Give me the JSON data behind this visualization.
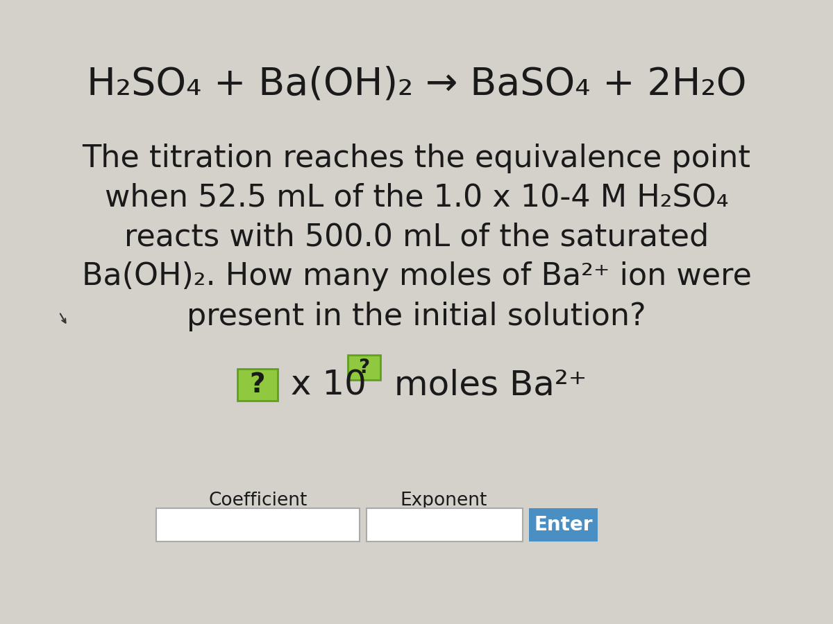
{
  "bg_color": "#d4d0ca",
  "bg_color2": "#c8c4bc",
  "equation": "H₂SO₄ + Ba(OH)₂ → BaSO₄ + 2H₂O",
  "body_text_lines": [
    "The titration reaches the equivalence point",
    "when 52.5 mL of the 1.0 x 10-4 M H₂SO₄",
    "reacts with 500.0 mL of the saturated",
    "Ba(OH)₂. How many moles of Ba²⁺ ion were",
    "present in the initial solution?"
  ],
  "coeff_label": "Coefficient",
  "exp_label": "Exponent",
  "enter_text": "Enter",
  "enter_bg": "#4a8fc4",
  "enter_text_color": "#ffffff",
  "text_color": "#1a1a1a",
  "green_box_color": "#90c840",
  "green_border_color": "#60a020",
  "eq_fontsize": 40,
  "body_fontsize": 32,
  "ans_fontsize": 36,
  "label_fontsize": 19
}
